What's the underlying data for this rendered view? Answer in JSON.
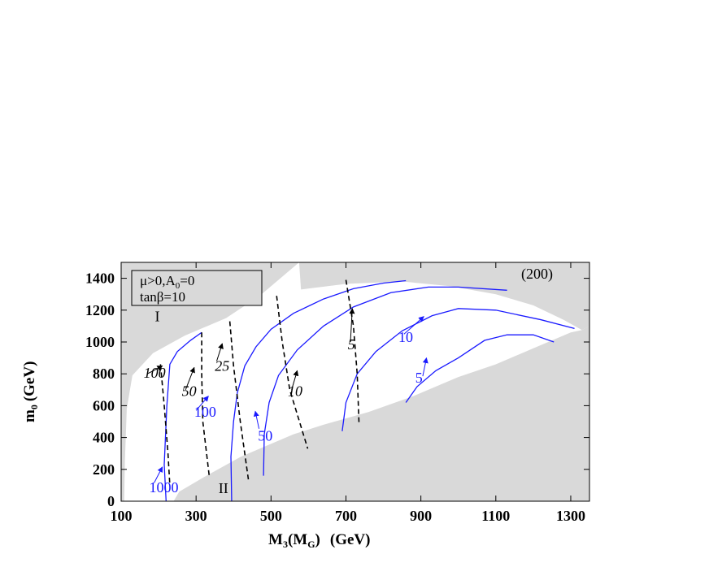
{
  "chart_data": {
    "type": "line",
    "title": "",
    "tag": "(200)",
    "xlabel_main": "M",
    "xlabel_sub1": "3",
    "xlabel_paren_open": "(M",
    "xlabel_sub2": "G",
    "xlabel_paren_close": ")",
    "xlabel_units": "(GeV)",
    "ylabel_main": "m",
    "ylabel_sub": "0",
    "ylabel_units": "(GeV)",
    "xlim": [
      100,
      1350
    ],
    "ylim": [
      0,
      1500
    ],
    "xticks": [
      100,
      300,
      500,
      700,
      900,
      1100,
      1300
    ],
    "yticks": [
      0,
      200,
      400,
      600,
      800,
      1000,
      1200,
      1400
    ],
    "legend_line1_a": "μ>0,A",
    "legend_line1_sub": "0",
    "legend_line1_b": "=0",
    "legend_line2": "tanβ=10",
    "region_labels": [
      {
        "text": "I",
        "x": 190,
        "y": 1130
      },
      {
        "text": "II",
        "x": 360,
        "y": 50
      }
    ],
    "colors": {
      "blue": "#1a1aff",
      "black": "#000000",
      "excluded": "#d9d9d9"
    },
    "excluded_regions": [
      {
        "name": "region-I",
        "points": [
          [
            100,
            0
          ],
          [
            100,
            1500
          ],
          [
            575,
            1500
          ],
          [
            470,
            1290
          ],
          [
            380,
            1150
          ],
          [
            270,
            1040
          ],
          [
            185,
            930
          ],
          [
            130,
            790
          ],
          [
            115,
            580
          ],
          [
            110,
            250
          ],
          [
            108,
            0
          ]
        ]
      },
      {
        "name": "region-upper-right",
        "points": [
          [
            575,
            1500
          ],
          [
            1350,
            1500
          ],
          [
            1350,
            1100
          ],
          [
            1330,
            1075
          ],
          [
            1280,
            1140
          ],
          [
            1200,
            1230
          ],
          [
            1100,
            1300
          ],
          [
            980,
            1350
          ],
          [
            850,
            1380
          ],
          [
            700,
            1365
          ],
          [
            580,
            1330
          ]
        ]
      },
      {
        "name": "region-II",
        "points": [
          [
            1350,
            0
          ],
          [
            240,
            0
          ],
          [
            255,
            60
          ],
          [
            320,
            150
          ],
          [
            420,
            280
          ],
          [
            560,
            420
          ],
          [
            640,
            480
          ],
          [
            760,
            560
          ],
          [
            880,
            660
          ],
          [
            1000,
            780
          ],
          [
            1100,
            860
          ],
          [
            1220,
            980
          ],
          [
            1300,
            1060
          ],
          [
            1330,
            1075
          ],
          [
            1350,
            1100
          ]
        ]
      }
    ],
    "series": [
      {
        "color": "blue",
        "dash": false,
        "values": [
          [
            220,
            0
          ],
          [
            215,
            230
          ],
          [
            222,
            600
          ],
          [
            230,
            860
          ],
          [
            250,
            940
          ],
          [
            285,
            1010
          ],
          [
            315,
            1060
          ]
        ]
      },
      {
        "color": "blue",
        "dash": false,
        "values": [
          [
            395,
            0
          ],
          [
            393,
            280
          ],
          [
            400,
            500
          ],
          [
            410,
            680
          ],
          [
            430,
            850
          ],
          [
            460,
            970
          ],
          [
            500,
            1080
          ],
          [
            560,
            1180
          ],
          [
            640,
            1270
          ],
          [
            720,
            1335
          ],
          [
            800,
            1370
          ],
          [
            860,
            1385
          ]
        ]
      },
      {
        "color": "blue",
        "dash": false,
        "values": [
          [
            480,
            160
          ],
          [
            482,
            420
          ],
          [
            495,
            620
          ],
          [
            520,
            790
          ],
          [
            570,
            950
          ],
          [
            640,
            1100
          ],
          [
            720,
            1220
          ],
          [
            820,
            1310
          ],
          [
            920,
            1345
          ],
          [
            1000,
            1345
          ],
          [
            1130,
            1325
          ]
        ]
      },
      {
        "color": "blue",
        "dash": false,
        "values": [
          [
            690,
            440
          ],
          [
            700,
            620
          ],
          [
            730,
            800
          ],
          [
            780,
            940
          ],
          [
            850,
            1070
          ],
          [
            930,
            1165
          ],
          [
            1000,
            1210
          ],
          [
            1100,
            1200
          ],
          [
            1220,
            1140
          ],
          [
            1310,
            1085
          ]
        ]
      },
      {
        "color": "blue",
        "dash": false,
        "values": [
          [
            860,
            620
          ],
          [
            890,
            720
          ],
          [
            940,
            820
          ],
          [
            1000,
            900
          ],
          [
            1070,
            1010
          ],
          [
            1130,
            1045
          ],
          [
            1200,
            1045
          ],
          [
            1255,
            1000
          ]
        ]
      },
      {
        "color": "black",
        "dash": true,
        "values": [
          [
            205,
            860
          ],
          [
            215,
            600
          ],
          [
            225,
            300
          ],
          [
            230,
            100
          ]
        ]
      },
      {
        "color": "black",
        "dash": true,
        "values": [
          [
            315,
            1060
          ],
          [
            315,
            800
          ],
          [
            318,
            500
          ],
          [
            335,
            160
          ]
        ]
      },
      {
        "color": "black",
        "dash": true,
        "values": [
          [
            390,
            1130
          ],
          [
            400,
            850
          ],
          [
            418,
            500
          ],
          [
            440,
            130
          ]
        ]
      },
      {
        "color": "black",
        "dash": true,
        "values": [
          [
            515,
            1290
          ],
          [
            530,
            1000
          ],
          [
            550,
            700
          ],
          [
            598,
            330
          ]
        ]
      },
      {
        "color": "black",
        "dash": true,
        "values": [
          [
            700,
            1390
          ],
          [
            720,
            1100
          ],
          [
            730,
            800
          ],
          [
            735,
            480
          ]
        ]
      }
    ],
    "contour_labels": [
      {
        "text": "1000",
        "color": "blue",
        "x": 175,
        "y": 55,
        "ax": 188,
        "ay": 115,
        "bx": 210,
        "by": 215
      },
      {
        "text": "100",
        "color": "blue",
        "x": 295,
        "y": 530,
        "ax": 300,
        "ay": 570,
        "bx": 333,
        "by": 660
      },
      {
        "text": "50",
        "color": "blue",
        "x": 465,
        "y": 380,
        "ax": 468,
        "ay": 455,
        "bx": 458,
        "by": 565
      },
      {
        "text": "10",
        "color": "blue",
        "x": 840,
        "y": 1000,
        "ax": 855,
        "ay": 1050,
        "bx": 908,
        "by": 1160
      },
      {
        "text": "5",
        "color": "blue",
        "x": 885,
        "y": 745,
        "ax": 905,
        "ay": 785,
        "bx": 915,
        "by": 900
      },
      {
        "text": "100",
        "color": "black",
        "x": 160,
        "y": 775,
        "ax": 170,
        "ay": 800,
        "bx": 210,
        "by": 850
      },
      {
        "text": "50",
        "color": "black",
        "x": 262,
        "y": 660,
        "ax": 272,
        "ay": 700,
        "bx": 295,
        "by": 840
      },
      {
        "text": "25",
        "color": "black",
        "x": 350,
        "y": 820,
        "ax": 355,
        "ay": 880,
        "bx": 370,
        "by": 990
      },
      {
        "text": "10",
        "color": "black",
        "x": 545,
        "y": 660,
        "ax": 555,
        "ay": 700,
        "bx": 570,
        "by": 820
      },
      {
        "text": "5",
        "color": "black",
        "x": 705,
        "y": 955,
        "ax": 712,
        "ay": 1000,
        "bx": 717,
        "by": 1210
      }
    ]
  }
}
